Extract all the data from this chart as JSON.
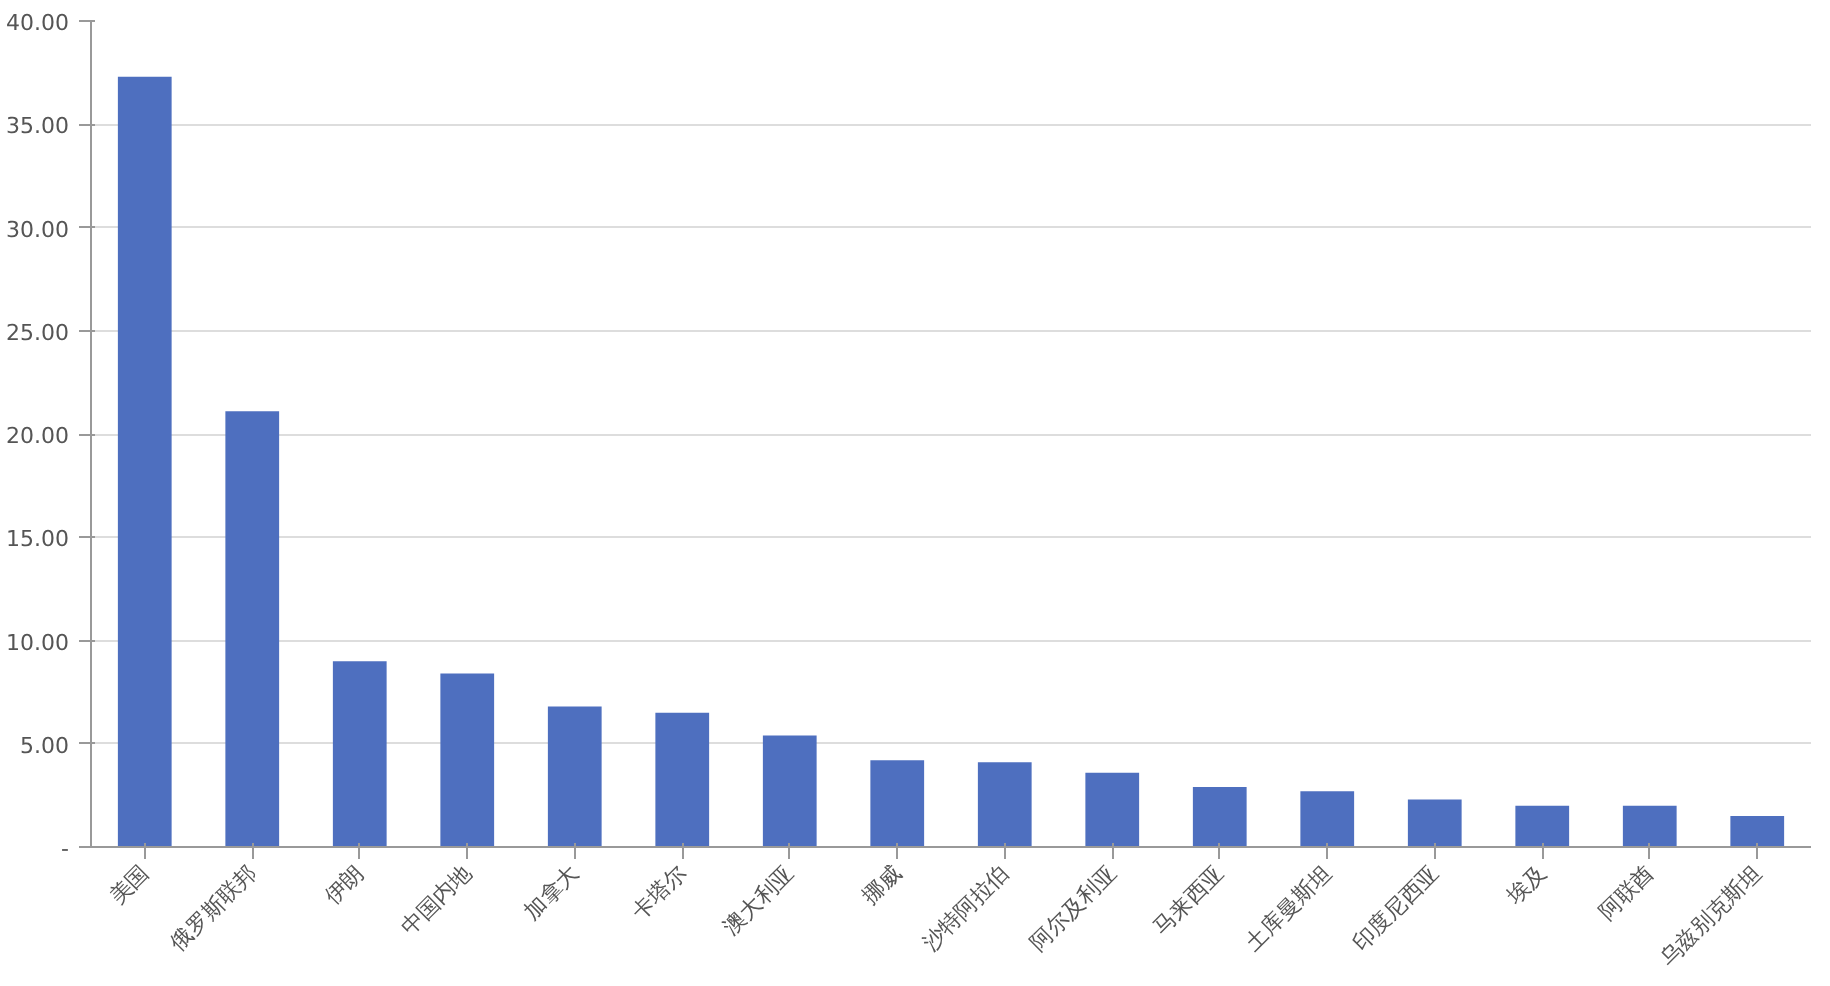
{
  "chart_data": {
    "type": "bar",
    "categories": [
      "美国",
      "俄罗斯联邦",
      "伊朗",
      "中国内地",
      "加拿大",
      "卡塔尔",
      "澳大利亚",
      "挪威",
      "沙特阿拉伯",
      "阿尔及利亚",
      "马来西亚",
      "土库曼斯坦",
      "印度尼西亚",
      "埃及",
      "阿联酋",
      "乌兹别克斯坦"
    ],
    "values": [
      37.3,
      21.1,
      9.0,
      8.4,
      6.8,
      6.5,
      5.4,
      4.2,
      4.1,
      3.6,
      2.9,
      2.7,
      2.3,
      2.0,
      2.0,
      1.5
    ],
    "color": "#4e6fbf",
    "ylim": [
      0,
      40
    ],
    "yticks": [
      {
        "value": 0,
        "label": "-"
      },
      {
        "value": 5,
        "label": "5.00"
      },
      {
        "value": 10,
        "label": "10.00"
      },
      {
        "value": 15,
        "label": "15.00"
      },
      {
        "value": 20,
        "label": "20.00"
      },
      {
        "value": 25,
        "label": "25.00"
      },
      {
        "value": 30,
        "label": "30.00"
      },
      {
        "value": 35,
        "label": "35.00"
      },
      {
        "value": 40,
        "label": "40.00"
      }
    ],
    "grid": "y"
  }
}
